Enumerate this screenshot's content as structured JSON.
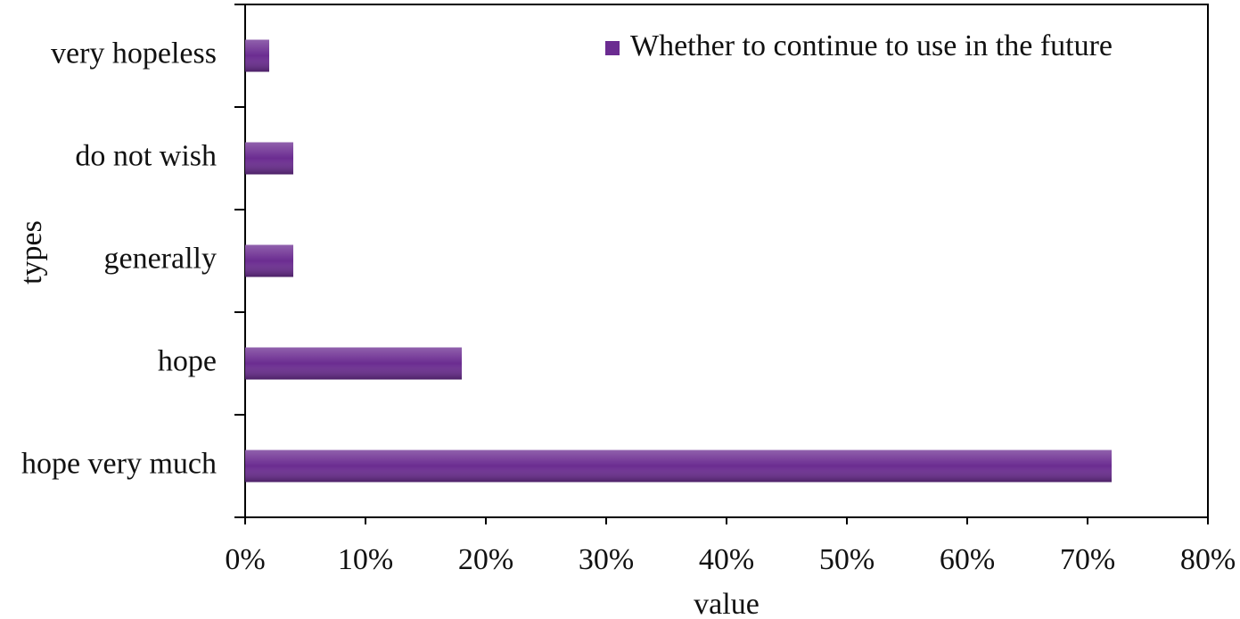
{
  "chart_data": {
    "type": "bar",
    "orientation": "horizontal",
    "x_label": "value",
    "y_label": "types",
    "categories": [
      "very hopeless",
      "do not wish",
      "generally",
      "hope",
      "hope very much"
    ],
    "series": [
      {
        "name": "Whether to continue to use in the future",
        "color": "#6b2c91",
        "values": [
          2,
          4,
          4,
          18,
          72
        ]
      }
    ],
    "xlim": [
      0,
      80
    ],
    "xticks": [
      {
        "value": 0,
        "label": "0%"
      },
      {
        "value": 10,
        "label": "10%"
      },
      {
        "value": 20,
        "label": "20%"
      },
      {
        "value": 30,
        "label": "30%"
      },
      {
        "value": 40,
        "label": "40%"
      },
      {
        "value": 50,
        "label": "50%"
      },
      {
        "value": 60,
        "label": "60%"
      },
      {
        "value": 70,
        "label": "70%"
      },
      {
        "value": 80,
        "label": "80%"
      }
    ],
    "legend": "upper right"
  }
}
